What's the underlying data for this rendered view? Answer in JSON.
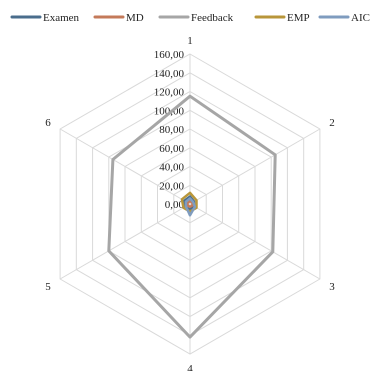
{
  "chart_data": {
    "type": "radar",
    "categories": [
      "1",
      "2",
      "3",
      "4",
      "5",
      "6"
    ],
    "rlim": [
      0,
      160
    ],
    "r_ticks": [
      "0,00",
      "20,00",
      "40,00",
      "60,00",
      "80,00",
      "100,00",
      "120,00",
      "140,00",
      "160,00"
    ],
    "grid": true,
    "legend_position": "top",
    "series": [
      {
        "name": "Examen",
        "color": "#4a6d8c",
        "values": [
          8,
          5,
          5,
          6,
          6,
          7
        ]
      },
      {
        "name": "MD",
        "color": "#c47a5a",
        "values": [
          3,
          3,
          3,
          3,
          3,
          3
        ]
      },
      {
        "name": "Feedback",
        "color": "#a6a6a6",
        "values": [
          115,
          105,
          102,
          142,
          100,
          95
        ]
      },
      {
        "name": "EMP",
        "color": "#b8963a",
        "values": [
          12,
          8,
          8,
          8,
          8,
          10
        ]
      },
      {
        "name": "AIC",
        "color": "#7f9cbf",
        "values": [
          6,
          4,
          6,
          12,
          5,
          5
        ]
      }
    ]
  }
}
